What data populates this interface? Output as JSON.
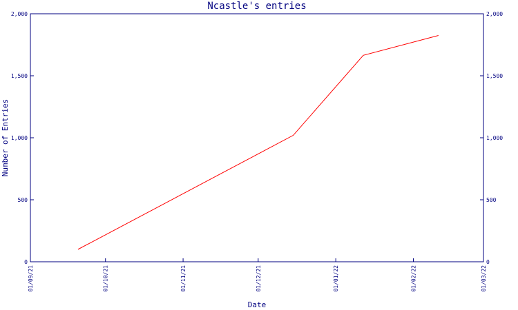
{
  "chart_data": {
    "type": "line",
    "title": "Ncastle's entries",
    "xlabel": "Date",
    "ylabel": "Number of Entries",
    "ylim": [
      0,
      2000
    ],
    "xlim": [
      "2021-09-01",
      "2022-03-01"
    ],
    "x_ticks": [
      "2021-09-01",
      "2021-10-01",
      "2021-11-01",
      "2021-12-01",
      "2022-01-01",
      "2022-02-01",
      "2022-03-01"
    ],
    "x_tick_labels": [
      "01/09/21",
      "01/10/21",
      "01/11/21",
      "01/12/21",
      "01/01/22",
      "01/02/22",
      "01/03/22"
    ],
    "y_ticks": [
      0,
      500,
      1000,
      1500,
      2000
    ],
    "y_tick_labels": [
      "0",
      "500",
      "1,000",
      "1,500",
      "2,000"
    ],
    "right_axis": true,
    "grid": false,
    "colors": {
      "axis": "#000080",
      "line": "#ff0000"
    },
    "series": [
      {
        "x": [
          "2021-09-20",
          "2021-12-15",
          "2022-01-12",
          "2022-02-11"
        ],
        "y": [
          100,
          1020,
          1665,
          1825
        ]
      }
    ]
  }
}
